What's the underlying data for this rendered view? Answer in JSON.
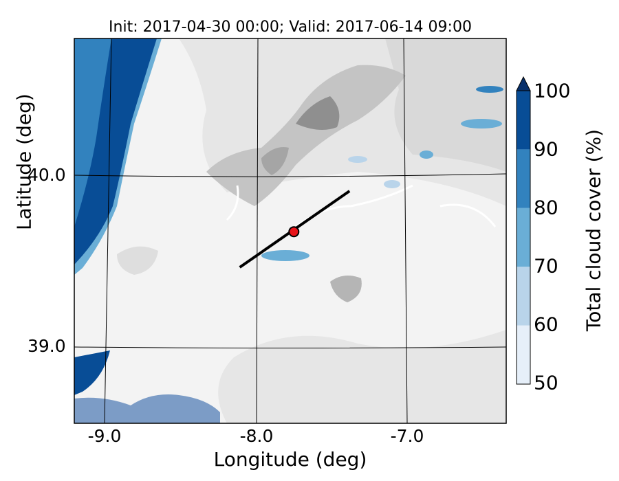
{
  "title": "Init: 2017-04-30 00:00; Valid: 2017-06-14 09:00",
  "axes": {
    "xlabel": "Longitude (deg)",
    "ylabel": "Latitude (deg)",
    "xticks": [
      "-9.0",
      "-8.0",
      "-7.0"
    ],
    "yticks": [
      "40.0",
      "39.0"
    ],
    "xrange": [
      -9.25,
      -6.3
    ],
    "yrange": [
      38.55,
      40.82
    ]
  },
  "colorbar": {
    "label": "Total cloud cover (%)",
    "ticks": [
      "50",
      "60",
      "70",
      "80",
      "90",
      "100"
    ],
    "extend": "max",
    "colors": [
      "#e6eff9",
      "#b9d4ea",
      "#6aaed6",
      "#3282be",
      "#084d96",
      "#08306b"
    ]
  },
  "marker": {
    "lon": -7.75,
    "lat": 39.68,
    "color": "#e8141a"
  },
  "transect": {
    "start": [
      -8.12,
      39.47
    ],
    "end": [
      -7.37,
      39.92
    ]
  },
  "colors": {
    "ocean_fill": "#7c9cc6",
    "terrain_light": "#efefef",
    "terrain_dark": "#9a9a9a"
  }
}
